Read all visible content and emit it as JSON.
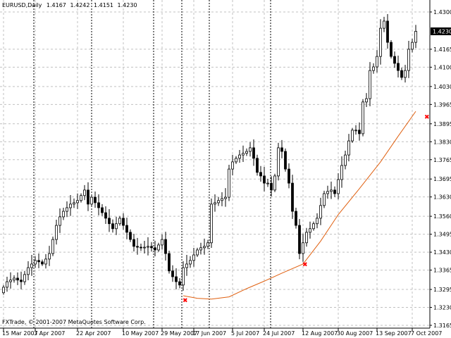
{
  "header": {
    "symbol": "EURUSD,Daily",
    "open": "1.4167",
    "high": "1.4242",
    "low": "1.4151",
    "close": "1.4230"
  },
  "footer": {
    "copyright": "FXTrade, © 2001-2007 MetaQuotes Software Corp."
  },
  "colors": {
    "background": "#ffffff",
    "candles": "#000000",
    "grid": "#c0c0c0",
    "curve": "#e06010",
    "marker": "#ff0000",
    "price_box": "#000000"
  },
  "chart_data": {
    "type": "candlestick",
    "current_price": "1.4230",
    "ylim": [
      1.3165,
      1.43
    ],
    "y_ticks": [
      "1.4300",
      "1.4165",
      "1.4100",
      "1.4030",
      "1.3965",
      "1.3895",
      "1.3830",
      "1.3765",
      "1.3695",
      "1.3630",
      "1.3560",
      "1.3495",
      "1.3430",
      "1.3365",
      "1.3295",
      "1.3230",
      "1.3165"
    ],
    "x_ticks": [
      {
        "label": "15 Mar 2007",
        "bar": 0
      },
      {
        "label": "3 Apr 2007",
        "bar": 9
      },
      {
        "label": "22 Apr 2007",
        "bar": 21
      },
      {
        "label": "10 May 2007",
        "bar": 34
      },
      {
        "label": "29 May 2007",
        "bar": 45
      },
      {
        "label": "17 Jun 2007",
        "bar": 54
      },
      {
        "label": "5 Jul 2007",
        "bar": 65
      },
      {
        "label": "24 Jul 2007",
        "bar": 74
      },
      {
        "label": "12 Aug 2007",
        "bar": 85
      },
      {
        "label": "30 Aug 2007",
        "bar": 95
      },
      {
        "label": "13 Sep 2007",
        "bar": 106
      },
      {
        "label": "7 Oct 2007",
        "bar": 116
      }
    ],
    "closes": [
      1.3303,
      1.3323,
      1.3329,
      1.3336,
      1.3329,
      1.3323,
      1.3349,
      1.3374,
      1.3387,
      1.34,
      1.3395,
      1.3387,
      1.3405,
      1.3425,
      1.3476,
      1.3527,
      1.3558,
      1.3578,
      1.3591,
      1.3604,
      1.3609,
      1.3617,
      1.3635,
      1.3655,
      1.3604,
      1.3629,
      1.3609,
      1.3591,
      1.3573,
      1.3553,
      1.3533,
      1.3515,
      1.3533,
      1.3553,
      1.3527,
      1.3502,
      1.3476,
      1.3451,
      1.3448,
      1.3446,
      1.3448,
      1.3451,
      1.3446,
      1.3438,
      1.3456,
      1.3476,
      1.3425,
      1.3362,
      1.3341,
      1.3323,
      1.3311,
      1.3374,
      1.3387,
      1.34,
      1.342,
      1.3438,
      1.3446,
      1.3451,
      1.3464,
      1.3604,
      1.3609,
      1.3617,
      1.3624,
      1.3629,
      1.3731,
      1.3757,
      1.377,
      1.3782,
      1.3788,
      1.3795,
      1.3808,
      1.377,
      1.3719,
      1.3706,
      1.368,
      1.368,
      1.3655,
      1.3706,
      1.3808,
      1.3795,
      1.3731,
      1.368,
      1.3578,
      1.3527,
      1.3425,
      1.3464,
      1.3502,
      1.3515,
      1.3533,
      1.3553,
      1.3599,
      1.3642,
      1.365,
      1.3655,
      1.3642,
      1.3693,
      1.3744,
      1.3782,
      1.3833,
      1.3872,
      1.3872,
      1.3859,
      1.3974,
      1.3986,
      1.4088,
      1.4101,
      1.4139,
      1.4241,
      1.4267,
      1.419,
      1.4139,
      1.4114,
      1.4088,
      1.4063,
      1.4088,
      1.4165,
      1.419,
      1.423
    ],
    "curve": [
      [
        51,
        1.3272
      ],
      [
        55,
        1.3263
      ],
      [
        59,
        1.326
      ],
      [
        64,
        1.3268
      ],
      [
        69,
        1.3298
      ],
      [
        74,
        1.3325
      ],
      [
        79,
        1.3354
      ],
      [
        85,
        1.3387
      ],
      [
        90,
        1.347
      ],
      [
        95,
        1.3566
      ],
      [
        101,
        1.366
      ],
      [
        107,
        1.3757
      ],
      [
        112,
        1.385
      ],
      [
        117,
        1.394
      ]
    ],
    "markers": [
      [
        51,
        1.3255
      ],
      [
        85,
        1.3385
      ],
      [
        120,
        1.392
      ]
    ]
  }
}
